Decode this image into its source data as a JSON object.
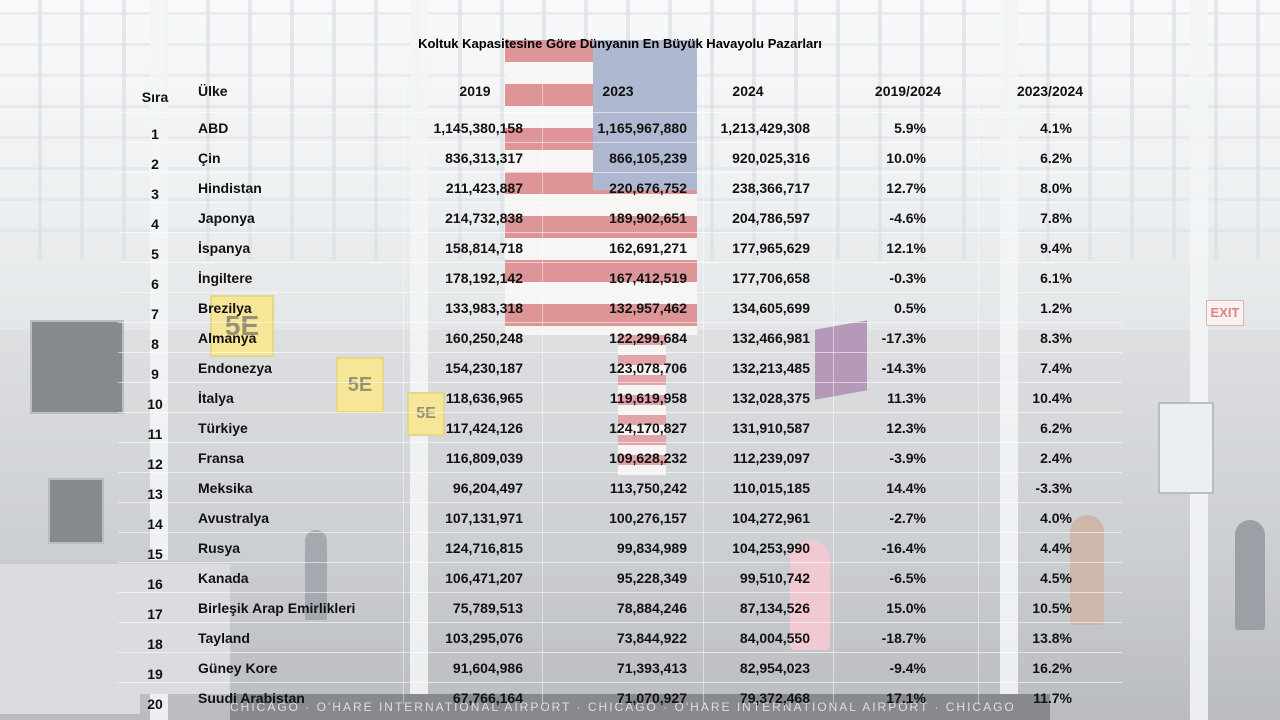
{
  "title": "Koltuk Kapasitesine Göre Dünyanın En Büyük Havayolu Pazarları",
  "columns": {
    "rank": "Sıra",
    "country": "Ülke",
    "y2019": "2019",
    "y2023": "2023",
    "y2024": "2024",
    "ch2019_2024": "2019/2024",
    "ch2023_2024": "2023/2024"
  },
  "rows": [
    {
      "rank": "1",
      "country": "ABD",
      "y2019": "1,145,380,158",
      "y2023": "1,165,967,880",
      "y2024": "1,213,429,308",
      "p1": "5.9%",
      "p2": "4.1%"
    },
    {
      "rank": "2",
      "country": "Çin",
      "y2019": "836,313,317",
      "y2023": "866,105,239",
      "y2024": "920,025,316",
      "p1": "10.0%",
      "p2": "6.2%"
    },
    {
      "rank": "3",
      "country": "Hindistan",
      "y2019": "211,423,887",
      "y2023": "220,676,752",
      "y2024": "238,366,717",
      "p1": "12.7%",
      "p2": "8.0%"
    },
    {
      "rank": "4",
      "country": "Japonya",
      "y2019": "214,732,838",
      "y2023": "189,902,651",
      "y2024": "204,786,597",
      "p1": "-4.6%",
      "p2": "7.8%"
    },
    {
      "rank": "5",
      "country": "İspanya",
      "y2019": "158,814,718",
      "y2023": "162,691,271",
      "y2024": "177,965,629",
      "p1": "12.1%",
      "p2": "9.4%"
    },
    {
      "rank": "6",
      "country": "İngiltere",
      "y2019": "178,192,142",
      "y2023": "167,412,519",
      "y2024": "177,706,658",
      "p1": "-0.3%",
      "p2": "6.1%"
    },
    {
      "rank": "7",
      "country": "Brezilya",
      "y2019": "133,983,318",
      "y2023": "132,957,462",
      "y2024": "134,605,699",
      "p1": "0.5%",
      "p2": "1.2%"
    },
    {
      "rank": "8",
      "country": "Almanya",
      "y2019": "160,250,248",
      "y2023": "122,299,684",
      "y2024": "132,466,981",
      "p1": "-17.3%",
      "p2": "8.3%"
    },
    {
      "rank": "9",
      "country": "Endonezya",
      "y2019": "154,230,187",
      "y2023": "123,078,706",
      "y2024": "132,213,485",
      "p1": "-14.3%",
      "p2": "7.4%"
    },
    {
      "rank": "10",
      "country": "İtalya",
      "y2019": "118,636,965",
      "y2023": "119,619,958",
      "y2024": "132,028,375",
      "p1": "11.3%",
      "p2": "10.4%"
    },
    {
      "rank": "11",
      "country": "Türkiye",
      "y2019": "117,424,126",
      "y2023": "124,170,827",
      "y2024": "131,910,587",
      "p1": "12.3%",
      "p2": "6.2%"
    },
    {
      "rank": "12",
      "country": "Fransa",
      "y2019": "116,809,039",
      "y2023": "109,628,232",
      "y2024": "112,239,097",
      "p1": "-3.9%",
      "p2": "2.4%"
    },
    {
      "rank": "13",
      "country": "Meksika",
      "y2019": "96,204,497",
      "y2023": "113,750,242",
      "y2024": "110,015,185",
      "p1": "14.4%",
      "p2": "-3.3%"
    },
    {
      "rank": "14",
      "country": "Avustralya",
      "y2019": "107,131,971",
      "y2023": "100,276,157",
      "y2024": "104,272,961",
      "p1": "-2.7%",
      "p2": "4.0%"
    },
    {
      "rank": "15",
      "country": "Rusya",
      "y2019": "124,716,815",
      "y2023": "99,834,989",
      "y2024": "104,253,990",
      "p1": "-16.4%",
      "p2": "4.4%"
    },
    {
      "rank": "16",
      "country": "Kanada",
      "y2019": "106,471,207",
      "y2023": "95,228,349",
      "y2024": "99,510,742",
      "p1": "-6.5%",
      "p2": "4.5%"
    },
    {
      "rank": "17",
      "country": "Birleşik Arap Emirlikleri",
      "y2019": "75,789,513",
      "y2023": "78,884,246",
      "y2024": "87,134,526",
      "p1": "15.0%",
      "p2": "10.5%"
    },
    {
      "rank": "18",
      "country": "Tayland",
      "y2019": "103,295,076",
      "y2023": "73,844,922",
      "y2024": "84,004,550",
      "p1": "-18.7%",
      "p2": "13.8%"
    },
    {
      "rank": "19",
      "country": "Güney Kore",
      "y2019": "91,604,986",
      "y2023": "71,393,413",
      "y2024": "82,954,023",
      "p1": "-9.4%",
      "p2": "16.2%"
    },
    {
      "rank": "20",
      "country": "Suudi Arabistan",
      "y2019": "67,766,164",
      "y2023": "71,070,927",
      "y2024": "79,372,468",
      "p1": "17.1%",
      "p2": "11.7%"
    }
  ],
  "background": {
    "gate_signs": [
      "5E",
      "5E",
      "5E"
    ],
    "exit_sign": "EXIT",
    "floor_text": "CHICAGO · O'HARE INTERNATIONAL AIRPORT · CHICAGO · O'HARE INTERNATIONAL AIRPORT · CHICAGO"
  }
}
